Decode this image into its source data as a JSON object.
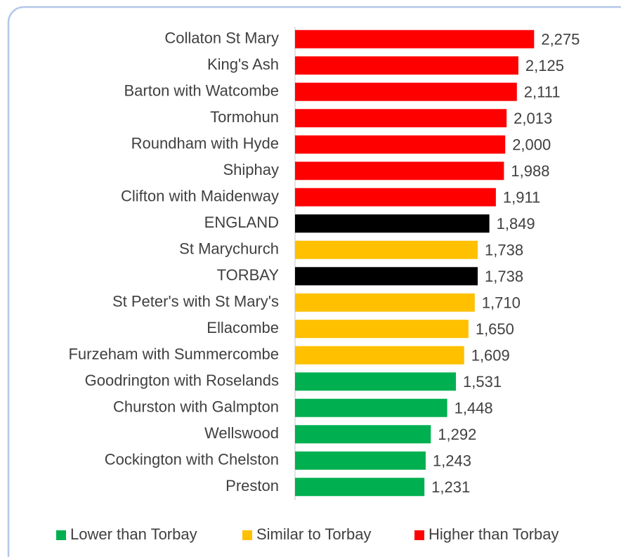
{
  "chart_data": {
    "type": "hbar",
    "categories": [
      "Collaton St Mary",
      "King's Ash",
      "Barton with Watcombe",
      "Tormohun",
      "Roundham with Hyde",
      "Shiphay",
      "Clifton with Maidenway",
      "ENGLAND",
      "St Marychurch",
      "TORBAY",
      "St Peter's with St Mary's",
      "Ellacombe",
      "Furzeham with Summercombe",
      "Goodrington with Roselands",
      "Churston with Galmpton",
      "Wellswood",
      "Cockington with Chelston",
      "Preston"
    ],
    "values": [
      2275,
      2125,
      2111,
      2013,
      2000,
      1988,
      1911,
      1849,
      1738,
      1738,
      1710,
      1650,
      1609,
      1531,
      1448,
      1292,
      1243,
      1231
    ],
    "value_labels": [
      "2,275",
      "2,125",
      "2,111",
      "2,013",
      "2,000",
      "1,988",
      "1,911",
      "1,849",
      "1,738",
      "1,738",
      "1,710",
      "1,650",
      "1,609",
      "1,531",
      "1,448",
      "1,292",
      "1,243",
      "1,231"
    ],
    "colors": [
      "#ff0000",
      "#ff0000",
      "#ff0000",
      "#ff0000",
      "#ff0000",
      "#ff0000",
      "#ff0000",
      "#000000",
      "#ffc000",
      "#000000",
      "#ffc000",
      "#ffc000",
      "#ffc000",
      "#00b050",
      "#00b050",
      "#00b050",
      "#00b050",
      "#00b050"
    ],
    "xlim": [
      0,
      2500
    ],
    "legend_position": "bottom",
    "legend": [
      {
        "name": "Lower than Torbay",
        "color": "#00b050"
      },
      {
        "name": "Similar to Torbay",
        "color": "#ffc000"
      },
      {
        "name": "Higher than Torbay",
        "color": "#ff0000"
      }
    ]
  }
}
